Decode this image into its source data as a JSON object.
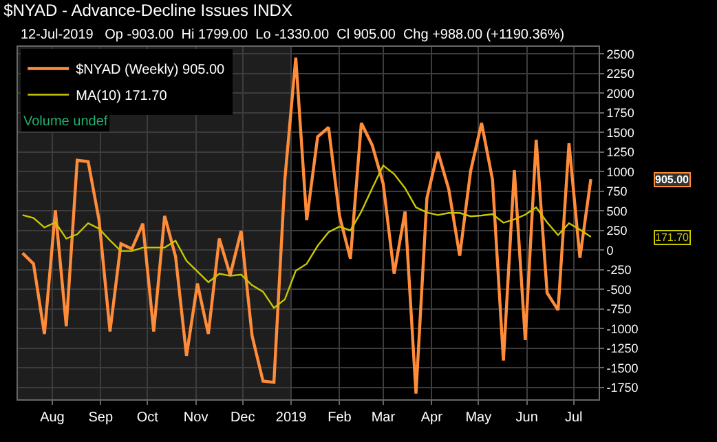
{
  "chart_data": {
    "type": "line",
    "title": "$NYAD - Advance-Decline Issues INDX",
    "subtitle": "12-Jul-2019   Op -903.00  Hi 1799.00  Lo -1330.00  Cl 905.00  Chg +988.00 (+1190.36%)",
    "x": [
      "2018-07-13",
      "2018-07-20",
      "2018-07-27",
      "2018-08-03",
      "2018-08-10",
      "2018-08-17",
      "2018-08-24",
      "2018-08-31",
      "2018-09-07",
      "2018-09-14",
      "2018-09-21",
      "2018-09-28",
      "2018-10-05",
      "2018-10-12",
      "2018-10-19",
      "2018-10-26",
      "2018-11-02",
      "2018-11-09",
      "2018-11-16",
      "2018-11-23",
      "2018-11-30",
      "2018-12-07",
      "2018-12-14",
      "2018-12-21",
      "2018-12-28",
      "2019-01-04",
      "2019-01-11",
      "2019-01-18",
      "2019-01-25",
      "2019-02-01",
      "2019-02-08",
      "2019-02-15",
      "2019-02-22",
      "2019-03-01",
      "2019-03-08",
      "2019-03-15",
      "2019-03-22",
      "2019-03-29",
      "2019-04-05",
      "2019-04-12",
      "2019-04-19",
      "2019-04-26",
      "2019-05-03",
      "2019-05-10",
      "2019-05-17",
      "2019-05-24",
      "2019-05-31",
      "2019-06-07",
      "2019-06-14",
      "2019-06-21",
      "2019-06-28",
      "2019-07-05",
      "2019-07-12"
    ],
    "series": [
      {
        "name": "$NYAD (Weekly) 905.00",
        "color": "#ff8c3a",
        "values": [
          -38,
          -174,
          -1068,
          507,
          -970,
          1145,
          1128,
          382,
          -1036,
          82,
          16,
          338,
          -1036,
          436,
          -82,
          -1346,
          -425,
          -1068,
          147,
          -316,
          245,
          -1090,
          -1668,
          -1684,
          899,
          2452,
          382,
          1444,
          1564,
          436,
          -109,
          1619,
          1335,
          845,
          -300,
          490,
          -1826,
          665,
          1253,
          774,
          -71,
          1008,
          1619,
          899,
          -1406,
          1019,
          -1145,
          1406,
          -545,
          -763,
          1362,
          -98,
          905
        ]
      },
      {
        "name": "MA(10) 171.70",
        "color": "#c8c800",
        "values": [
          447,
          409,
          289,
          354,
          147,
          202,
          343,
          273,
          125,
          -11,
          -11,
          33,
          33,
          33,
          120,
          -136,
          -272,
          -409,
          -300,
          -327,
          -311,
          -447,
          -529,
          -736,
          -627,
          -262,
          -174,
          55,
          229,
          300,
          251,
          491,
          790,
          1079,
          970,
          790,
          545,
          480,
          447,
          474,
          474,
          431,
          441,
          458,
          349,
          392,
          452,
          545,
          354,
          191,
          343,
          262,
          169
        ]
      }
    ],
    "xlim": [
      "2018-07-10",
      "2019-07-17"
    ],
    "xticks": [
      {
        "value": "2018-08-01",
        "label": "Aug"
      },
      {
        "value": "2018-09-01",
        "label": "Sep"
      },
      {
        "value": "2018-10-01",
        "label": "Oct"
      },
      {
        "value": "2018-11-01",
        "label": "Nov"
      },
      {
        "value": "2018-12-01",
        "label": "Dec"
      },
      {
        "value": "2019-01-01",
        "label": "2019"
      },
      {
        "value": "2019-02-01",
        "label": "Feb"
      },
      {
        "value": "2019-03-01",
        "label": "Mar"
      },
      {
        "value": "2019-04-01",
        "label": "Apr"
      },
      {
        "value": "2019-05-01",
        "label": "May"
      },
      {
        "value": "2019-06-01",
        "label": "Jun"
      },
      {
        "value": "2019-07-01",
        "label": "Jul"
      }
    ],
    "ylim": [
      -1900,
      2590
    ],
    "yticks": [
      -1750,
      -1500,
      -1250,
      -1000,
      -750,
      -500,
      -250,
      0,
      250,
      500,
      750,
      1000,
      1250,
      1500,
      1750,
      2000,
      2250,
      2500
    ],
    "bands": [
      {
        "axis": "x",
        "from": "2018-07-10",
        "to": "2019-01-01",
        "color": "#1e1e1e"
      }
    ],
    "annotations": [
      "Volume undef",
      "905.00",
      "171.70"
    ],
    "grid": true,
    "legend": "top left",
    "marker": "none",
    "line_style": "solid"
  }
}
